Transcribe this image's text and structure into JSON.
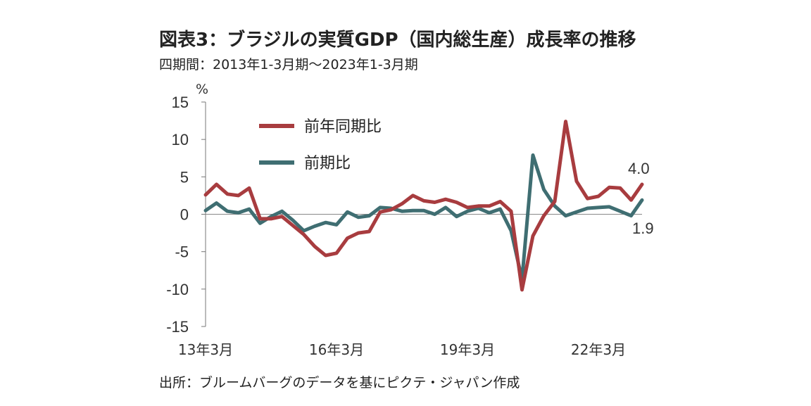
{
  "title": "図表3：ブラジルの実質GDP（国内総生産）成長率の推移",
  "subtitle": "四期間：2013年1-3月期～2023年1-3月期",
  "source": "出所：ブルームバーグのデータを基にピクテ・ジャパン作成",
  "chart_data": {
    "type": "line",
    "ylabel": "%",
    "ylim": [
      -15,
      15
    ],
    "yticks": [
      "15",
      "10",
      "5",
      "0",
      "-5",
      "-10",
      "-15"
    ],
    "ytick_values": [
      15,
      10,
      5,
      0,
      -5,
      -10,
      -15
    ],
    "xtick_labels": [
      "13年3月",
      "16年3月",
      "19年3月",
      "22年3月"
    ],
    "xtick_indices": [
      0,
      12,
      24,
      36
    ],
    "grid": false,
    "legend_position": "top-left",
    "series": [
      {
        "name": "前年同期比",
        "color": "#a83c3f",
        "values": [
          2.6,
          4.0,
          2.7,
          2.5,
          3.5,
          -0.6,
          -0.6,
          -0.3,
          -1.5,
          -2.7,
          -4.3,
          -5.5,
          -5.2,
          -3.2,
          -2.5,
          -2.3,
          0.3,
          0.6,
          1.4,
          2.5,
          1.8,
          1.6,
          2.0,
          1.6,
          0.9,
          1.1,
          1.1,
          1.7,
          0.4,
          -10.1,
          -2.9,
          -0.2,
          1.7,
          12.4,
          4.4,
          2.1,
          2.4,
          3.6,
          3.5,
          1.9,
          4.0
        ],
        "end_label": "4.0"
      },
      {
        "name": "前期比",
        "color": "#3f6e72",
        "values": [
          0.5,
          1.5,
          0.4,
          0.2,
          0.7,
          -1.2,
          -0.3,
          0.4,
          -0.8,
          -2.2,
          -1.6,
          -1.1,
          -1.4,
          0.3,
          -0.4,
          -0.2,
          0.9,
          0.8,
          0.4,
          0.5,
          0.5,
          0.0,
          0.9,
          -0.3,
          0.4,
          0.8,
          0.2,
          0.7,
          -2.2,
          -8.7,
          7.9,
          3.3,
          1.1,
          -0.2,
          0.3,
          0.8,
          0.9,
          1.0,
          0.4,
          -0.2,
          1.9
        ],
        "end_label": "1.9"
      }
    ]
  }
}
